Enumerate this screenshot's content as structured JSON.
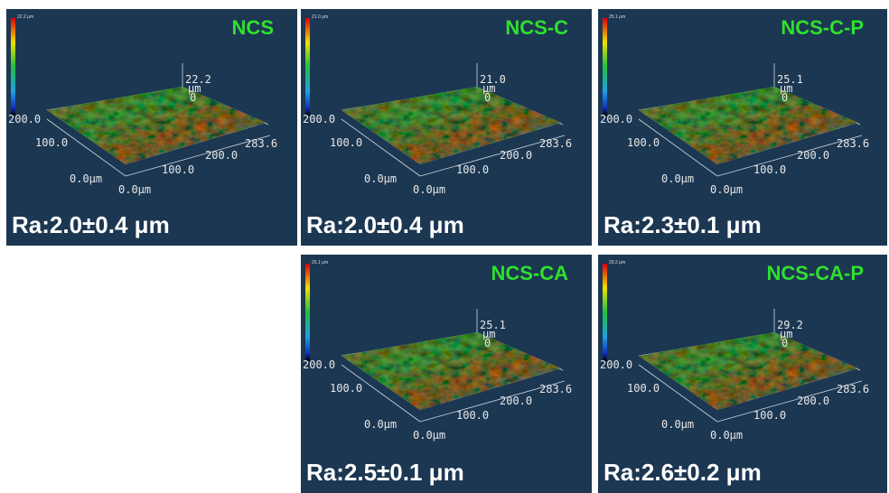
{
  "panels": [
    {
      "label": "NCS",
      "ra": "Ra:2.0±0.4 μm",
      "scale_max": "22.2 μm",
      "axes": {
        "z_max": "22.2",
        "z_unit": "μm",
        "z_min": "0",
        "y_max": "200.0",
        "y_mid": "100.0",
        "y_min": "0.0μm",
        "x_max": "283.6",
        "x_mid1": "200.0",
        "x_mid2": "100.0",
        "x_min": "0.0μm"
      }
    },
    {
      "label": "NCS-C",
      "ra": "Ra:2.0±0.4 μm",
      "scale_max": "21.0 μm",
      "axes": {
        "z_max": "21.0",
        "z_unit": "μm",
        "z_min": "0",
        "y_max": "200.0",
        "y_mid": "100.0",
        "y_min": "0.0μm",
        "x_max": "283.6",
        "x_mid1": "200.0",
        "x_mid2": "100.0",
        "x_min": "0.0μm"
      }
    },
    {
      "label": "NCS-C-P",
      "ra": "Ra:2.3±0.1 μm",
      "scale_max": "25.1 μm",
      "axes": {
        "z_max": "25.1",
        "z_unit": "μm",
        "z_min": "0",
        "y_max": "200.0",
        "y_mid": "100.0",
        "y_min": "0.0μm",
        "x_max": "283.6",
        "x_mid1": "200.0",
        "x_mid2": "100.0",
        "x_min": "0.0μm"
      }
    },
    {
      "label": "NCS-CA",
      "ra": "Ra:2.5±0.1 μm",
      "scale_max": "25.1 μm",
      "axes": {
        "z_max": "25.1",
        "z_unit": "μm",
        "z_min": "0",
        "y_max": "200.0",
        "y_mid": "100.0",
        "y_min": "0.0μm",
        "x_max": "283.6",
        "x_mid1": "200.0",
        "x_mid2": "100.0",
        "x_min": "0.0μm"
      }
    },
    {
      "label": "NCS-CA-P",
      "ra": "Ra:2.6±0.2 μm",
      "scale_max": "29.2 μm",
      "axes": {
        "z_max": "29.2",
        "z_unit": "μm",
        "z_min": "0",
        "y_max": "200.0",
        "y_mid": "100.0",
        "y_min": "0.0μm",
        "x_max": "283.6",
        "x_mid1": "200.0",
        "x_mid2": "100.0",
        "x_min": "0.0μm"
      }
    }
  ]
}
